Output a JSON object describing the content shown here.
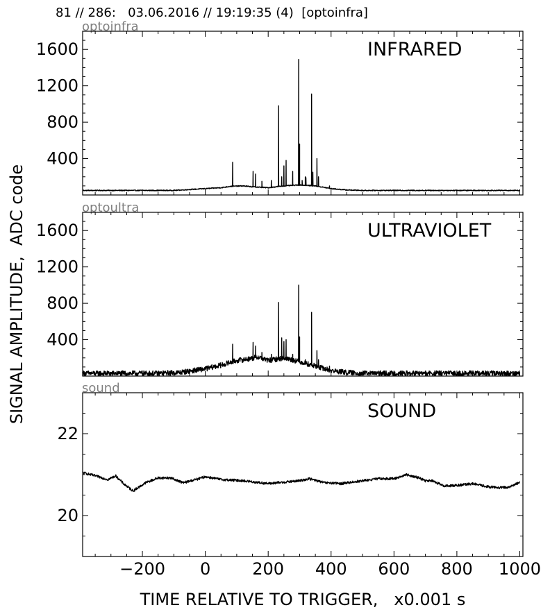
{
  "header": {
    "text": "81 // 286:   03.06.2016 // 19:19:35 (4)  [optoinfra]"
  },
  "axes": {
    "ylabel": "SIGNAL AMPLITUDE,  ADC code",
    "xlabel": "TIME RELATIVE TO TRIGGER,   x0.001 s"
  },
  "chart_data": [
    {
      "type": "line",
      "channel": "optoinfra",
      "title": "INFRARED",
      "xlim": [
        -390,
        1010
      ],
      "ylim": [
        0,
        1800
      ],
      "xticks": [
        -200,
        0,
        200,
        400,
        600,
        800,
        1000
      ],
      "yticks": [
        400,
        800,
        1200,
        1600
      ],
      "ytick_labels": [
        "400",
        "800",
        "1200",
        "1600"
      ],
      "xtick_labels_shown": false,
      "baseline": [
        [
          -390,
          50
        ],
        [
          -100,
          50
        ],
        [
          0,
          70
        ],
        [
          50,
          80
        ],
        [
          80,
          95
        ],
        [
          120,
          100
        ],
        [
          150,
          90
        ],
        [
          200,
          80
        ],
        [
          250,
          100
        ],
        [
          300,
          110
        ],
        [
          350,
          100
        ],
        [
          400,
          70
        ],
        [
          450,
          55
        ],
        [
          500,
          50
        ],
        [
          1000,
          50
        ]
      ],
      "noise": 5,
      "spikes": [
        [
          87,
          360
        ],
        [
          152,
          260
        ],
        [
          160,
          230
        ],
        [
          180,
          150
        ],
        [
          210,
          160
        ],
        [
          233,
          980
        ],
        [
          243,
          200
        ],
        [
          250,
          320
        ],
        [
          257,
          380
        ],
        [
          278,
          260
        ],
        [
          297,
          1490
        ],
        [
          300,
          560
        ],
        [
          308,
          160
        ],
        [
          318,
          200
        ],
        [
          320,
          190
        ],
        [
          338,
          1110
        ],
        [
          342,
          250
        ],
        [
          355,
          400
        ],
        [
          360,
          200
        ],
        [
          395,
          100
        ]
      ]
    },
    {
      "type": "line",
      "channel": "optoultra",
      "title": "ULTRAVIOLET",
      "xlim": [
        -390,
        1010
      ],
      "ylim": [
        0,
        1800
      ],
      "xticks": [
        -200,
        0,
        200,
        400,
        600,
        800,
        1000
      ],
      "yticks": [
        400,
        800,
        1200,
        1600
      ],
      "ytick_labels": [
        "400",
        "800",
        "1200",
        "1600"
      ],
      "xtick_labels_shown": false,
      "baseline": [
        [
          -390,
          30
        ],
        [
          -150,
          30
        ],
        [
          -80,
          40
        ],
        [
          0,
          80
        ],
        [
          50,
          120
        ],
        [
          100,
          170
        ],
        [
          140,
          190
        ],
        [
          170,
          210
        ],
        [
          200,
          170
        ],
        [
          250,
          200
        ],
        [
          300,
          160
        ],
        [
          350,
          110
        ],
        [
          400,
          60
        ],
        [
          450,
          40
        ],
        [
          500,
          30
        ],
        [
          1000,
          30
        ]
      ],
      "noise": 28,
      "spikes": [
        [
          87,
          350
        ],
        [
          152,
          370
        ],
        [
          160,
          330
        ],
        [
          180,
          260
        ],
        [
          210,
          240
        ],
        [
          233,
          810
        ],
        [
          243,
          420
        ],
        [
          250,
          380
        ],
        [
          257,
          400
        ],
        [
          278,
          240
        ],
        [
          297,
          1000
        ],
        [
          300,
          430
        ],
        [
          318,
          180
        ],
        [
          338,
          700
        ],
        [
          355,
          280
        ],
        [
          360,
          180
        ],
        [
          395,
          110
        ]
      ]
    },
    {
      "type": "line",
      "channel": "sound",
      "title": "SOUND",
      "xlim": [
        -390,
        1010
      ],
      "ylim": [
        19,
        23
      ],
      "xticks": [
        -200,
        0,
        200,
        400,
        600,
        800,
        1000
      ],
      "xtick_labels": [
        "−200",
        "0",
        "200",
        "400",
        "600",
        "800",
        "1000"
      ],
      "yticks": [
        20,
        22
      ],
      "ytick_labels": [
        "20",
        "22"
      ],
      "xtick_labels_shown": true,
      "baseline": [
        [
          -390,
          21.05
        ],
        [
          -340,
          20.95
        ],
        [
          -310,
          20.88
        ],
        [
          -285,
          20.97
        ],
        [
          -260,
          20.78
        ],
        [
          -230,
          20.6
        ],
        [
          -190,
          20.8
        ],
        [
          -150,
          20.92
        ],
        [
          -110,
          20.92
        ],
        [
          -70,
          20.8
        ],
        [
          -20,
          20.9
        ],
        [
          0,
          20.95
        ],
        [
          50,
          20.88
        ],
        [
          120,
          20.85
        ],
        [
          200,
          20.78
        ],
        [
          300,
          20.85
        ],
        [
          330,
          20.9
        ],
        [
          380,
          20.8
        ],
        [
          430,
          20.78
        ],
        [
          500,
          20.85
        ],
        [
          550,
          20.9
        ],
        [
          600,
          20.9
        ],
        [
          640,
          21.0
        ],
        [
          680,
          20.92
        ],
        [
          700,
          20.85
        ],
        [
          720,
          20.85
        ],
        [
          760,
          20.72
        ],
        [
          820,
          20.75
        ],
        [
          850,
          20.78
        ],
        [
          900,
          20.7
        ],
        [
          940,
          20.68
        ],
        [
          970,
          20.7
        ],
        [
          1000,
          20.82
        ]
      ],
      "noise": 0.03,
      "spikes": []
    }
  ]
}
